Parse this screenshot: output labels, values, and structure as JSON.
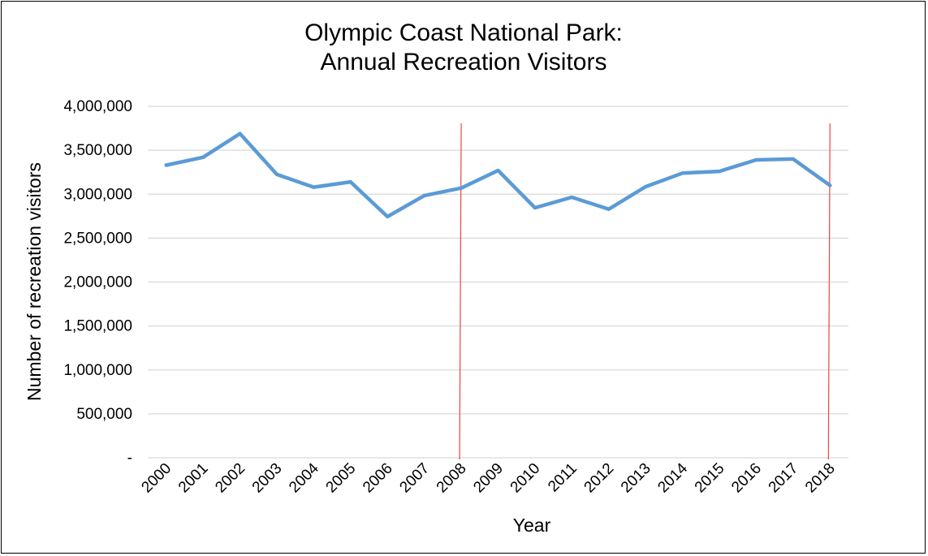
{
  "chart_data": {
    "type": "line",
    "title": [
      "Olympic Coast National Park:",
      "Annual Recreation Visitors"
    ],
    "xlabel": "Year",
    "ylabel": "Number of recreation visitors",
    "x": [
      "2000",
      "2001",
      "2002",
      "2003",
      "2004",
      "2005",
      "2006",
      "2007",
      "2008",
      "2009",
      "2010",
      "2011",
      "2012",
      "2013",
      "2014",
      "2015",
      "2016",
      "2017",
      "2018"
    ],
    "series": [
      {
        "color": "#5B9BD5",
        "values": [
          3330000,
          3420000,
          3690000,
          3225000,
          3080000,
          3140000,
          2745000,
          2985000,
          3070000,
          3270000,
          2845000,
          2965000,
          2830000,
          3085000,
          3240000,
          3260000,
          3390000,
          3400000,
          3100000
        ]
      }
    ],
    "ylim": [
      0,
      4000000
    ],
    "yticks": [
      0,
      500000,
      1000000,
      1500000,
      2000000,
      2500000,
      3000000,
      3500000,
      4000000
    ],
    "ytick_labels": [
      "-",
      "500,000",
      "1,000,000",
      "1,500,000",
      "2,000,000",
      "2,500,000",
      "3,000,000",
      "3,500,000",
      "4,000,000"
    ],
    "grid": true,
    "legend": "none",
    "markers": {
      "color": "#E8473F",
      "x": [
        "2008",
        "2018"
      ]
    }
  }
}
